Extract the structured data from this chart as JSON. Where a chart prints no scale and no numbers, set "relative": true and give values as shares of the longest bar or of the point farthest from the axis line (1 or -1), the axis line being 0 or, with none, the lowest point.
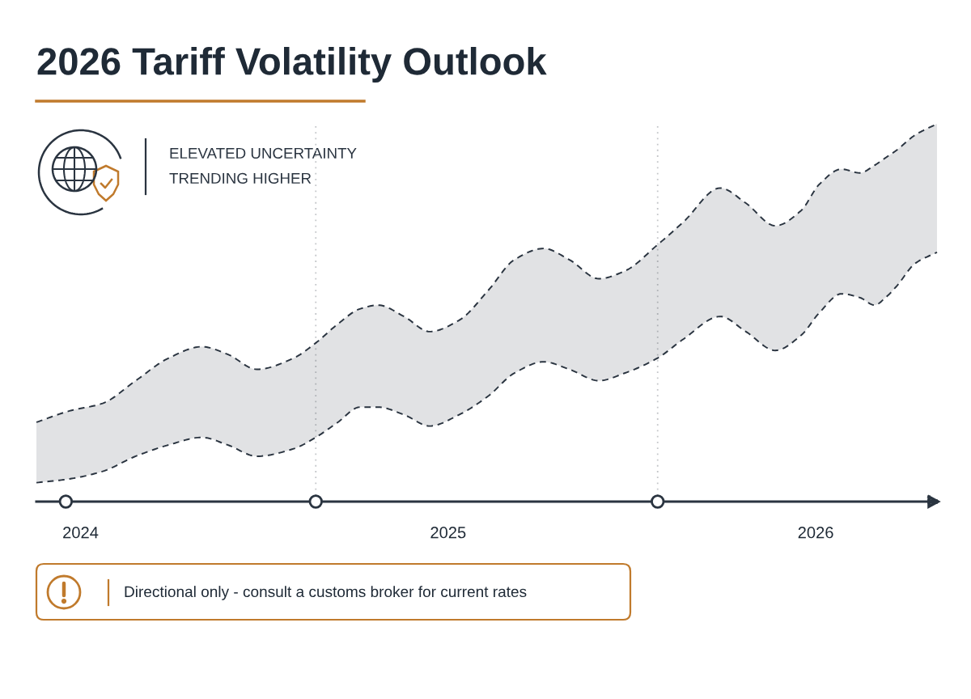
{
  "chart_data": {
    "type": "line",
    "title": "2026 Tariff Volatility Outlook",
    "annotations": [
      "ELEVATED UNCERTAINTY",
      "TRENDING HIGHER",
      "Directional only - consult a customs broker for current rates"
    ],
    "relative": true,
    "xlim": [
      2023.88,
      2026.33
    ],
    "xticks": [
      2024,
      2025,
      2026
    ],
    "tick_labels": "x",
    "line_style": "dashed",
    "series": [
      {
        "color": "#2a3440",
        "x": [
          2023.88,
          2023.97,
          2024.06,
          2024.15,
          2024.24,
          2024.33,
          2024.4,
          2024.48,
          2024.58,
          2024.64,
          2024.7,
          2024.76,
          2024.81,
          2024.88,
          2024.95,
          2025.03,
          2025.11,
          2025.18,
          2025.26,
          2025.33,
          2025.41,
          2025.48,
          2025.57,
          2025.64,
          2025.74,
          2025.81,
          2025.89,
          2025.96,
          2026.01,
          2026.07,
          2026.12,
          2026.16,
          2026.19,
          2026.22,
          2026.27,
          2026.33
        ],
        "values": [
          0.21,
          0.24,
          0.26,
          0.32,
          0.38,
          0.41,
          0.39,
          0.35,
          0.38,
          0.42,
          0.47,
          0.51,
          0.52,
          0.49,
          0.45,
          0.48,
          0.56,
          0.64,
          0.67,
          0.64,
          0.59,
          0.61,
          0.68,
          0.74,
          0.83,
          0.79,
          0.73,
          0.77,
          0.84,
          0.88,
          0.87,
          0.89,
          0.91,
          0.93,
          0.97,
          1.0
        ],
        "lower": [
          0.05,
          0.06,
          0.08,
          0.12,
          0.15,
          0.17,
          0.15,
          0.12,
          0.14,
          0.17,
          0.21,
          0.25,
          0.25,
          0.23,
          0.2,
          0.23,
          0.28,
          0.34,
          0.37,
          0.35,
          0.32,
          0.34,
          0.38,
          0.43,
          0.49,
          0.45,
          0.4,
          0.44,
          0.5,
          0.55,
          0.54,
          0.52,
          0.54,
          0.57,
          0.63,
          0.66
        ],
        "upper": [
          0.21,
          0.24,
          0.26,
          0.32,
          0.38,
          0.41,
          0.39,
          0.35,
          0.38,
          0.42,
          0.47,
          0.51,
          0.52,
          0.49,
          0.45,
          0.48,
          0.56,
          0.64,
          0.67,
          0.64,
          0.59,
          0.61,
          0.68,
          0.74,
          0.83,
          0.79,
          0.73,
          0.77,
          0.84,
          0.88,
          0.87,
          0.89,
          0.91,
          0.93,
          0.97,
          1.0
        ]
      },
      {
        "color": "#2a3440",
        "x": [
          2023.88,
          2023.97,
          2024.06,
          2024.15,
          2024.24,
          2024.33,
          2024.4,
          2024.48,
          2024.58,
          2024.64,
          2024.7,
          2024.76,
          2024.81,
          2024.88,
          2024.95,
          2025.03,
          2025.11,
          2025.18,
          2025.26,
          2025.33,
          2025.41,
          2025.48,
          2025.57,
          2025.64,
          2025.74,
          2025.81,
          2025.89,
          2025.96,
          2026.01,
          2026.07,
          2026.12,
          2026.16,
          2026.19,
          2026.22,
          2026.27,
          2026.33
        ],
        "values": [
          0.05,
          0.06,
          0.08,
          0.12,
          0.15,
          0.17,
          0.15,
          0.12,
          0.14,
          0.17,
          0.21,
          0.25,
          0.25,
          0.23,
          0.2,
          0.23,
          0.28,
          0.34,
          0.37,
          0.35,
          0.32,
          0.34,
          0.38,
          0.43,
          0.49,
          0.45,
          0.4,
          0.44,
          0.5,
          0.55,
          0.54,
          0.52,
          0.54,
          0.57,
          0.63,
          0.66
        ]
      },
      {
        "type": "scatter",
        "color": "#2a3440",
        "marker": "circle",
        "x": [
          2023.96,
          2024.64,
          2025.57
        ],
        "values": [
          0,
          0,
          0
        ]
      }
    ],
    "ref_lines": [
      {
        "axis": "x",
        "value": 2024.64,
        "color": "#c4c6c9",
        "line_style": "dotted"
      },
      {
        "axis": "x",
        "value": 2025.57,
        "color": "#c4c6c9",
        "line_style": "dotted"
      }
    ]
  }
}
